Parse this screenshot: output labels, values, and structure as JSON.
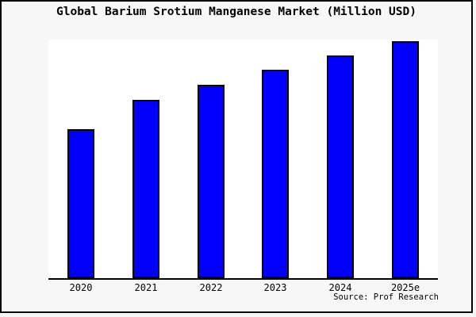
{
  "chart_data": {
    "type": "bar",
    "title": "Global Barium Srotium Manganese Market (Million USD)",
    "categories": [
      "2020",
      "2021",
      "2022",
      "2023",
      "2024",
      "2025e"
    ],
    "values_pct_of_max": [
      62.9,
      75.3,
      81.6,
      88.0,
      94.0,
      100.0
    ],
    "xlabel": "",
    "ylabel": "",
    "yaxis_visible": false,
    "gridlines": false,
    "legend": null,
    "source": "Source: Prof Research",
    "bar_color": "#0000fb",
    "bar_border_color": "#000000",
    "plot_background": "#ffffff",
    "canvas_background": "#f7f7f7",
    "axis_color": "#000000"
  }
}
